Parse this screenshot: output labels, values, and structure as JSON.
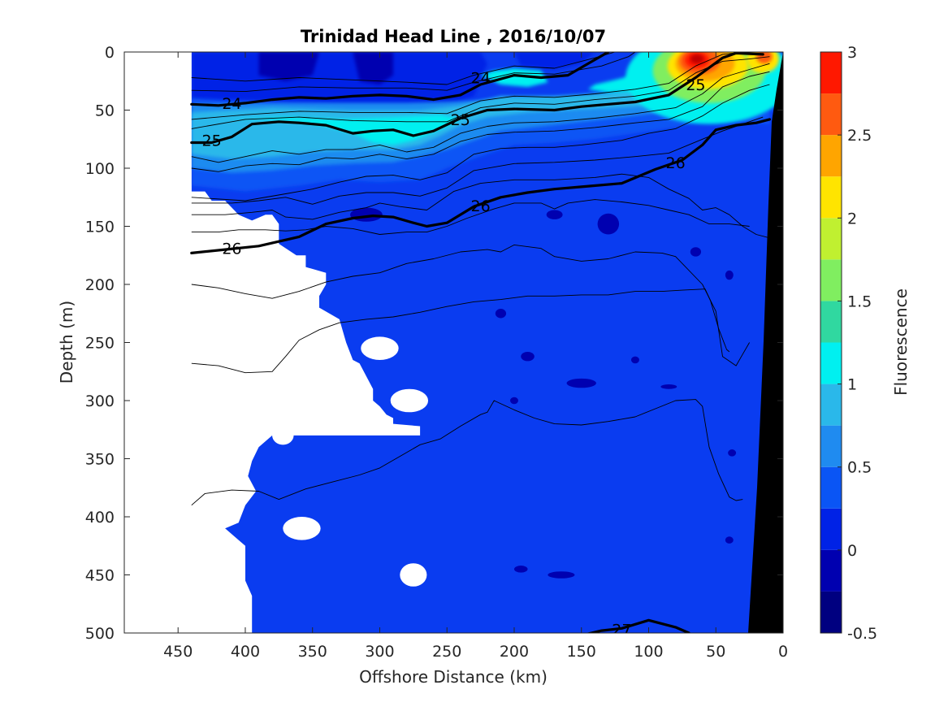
{
  "chart_data": {
    "type": "heatmap",
    "title": "Trinidad Head Line , 2016/10/07",
    "xlabel": "Offshore Distance (km)",
    "ylabel": "Depth (m)",
    "colorbar_label": "Fluorescence",
    "xlim": [
      490,
      0
    ],
    "ylim": [
      0,
      500
    ],
    "x_ticks": [
      450,
      400,
      350,
      300,
      250,
      200,
      150,
      100,
      50,
      0
    ],
    "y_ticks": [
      0,
      50,
      100,
      150,
      200,
      250,
      300,
      350,
      400,
      450,
      500
    ],
    "colorbar_ticks": [
      -0.5,
      0,
      0.5,
      1,
      1.5,
      2,
      2.5,
      3
    ],
    "colorbar_levels": [
      -0.5,
      -0.25,
      0,
      0.25,
      0.5,
      0.75,
      1,
      1.25,
      1.5,
      1.75,
      2,
      2.25,
      2.5,
      2.75,
      3
    ],
    "colormap": [
      "#000080",
      "#0000b0",
      "#0022e6",
      "#0a55f5",
      "#1f8bf0",
      "#2ab8ea",
      "#00f0f0",
      "#30d8a0",
      "#80ee60",
      "#c0f030",
      "#ffe400",
      "#ffa500",
      "#ff5a10",
      "#ff1800",
      "#c00000"
    ],
    "background_fill": "#0a3cf0",
    "isopycnals": [
      {
        "label": "24",
        "points": [
          [
            440,
            45
          ],
          [
            420,
            46
          ],
          [
            400,
            44
          ],
          [
            380,
            41
          ],
          [
            360,
            39
          ],
          [
            340,
            40
          ],
          [
            320,
            38
          ],
          [
            300,
            37
          ],
          [
            280,
            38
          ],
          [
            260,
            41
          ],
          [
            240,
            37
          ],
          [
            225,
            28
          ],
          [
            200,
            20
          ],
          [
            180,
            22
          ],
          [
            160,
            20
          ],
          [
            145,
            10
          ],
          [
            130,
            0
          ]
        ]
      },
      {
        "label": "25",
        "points": [
          [
            440,
            78
          ],
          [
            425,
            78
          ],
          [
            410,
            73
          ],
          [
            395,
            62
          ],
          [
            375,
            60
          ],
          [
            360,
            61
          ],
          [
            340,
            63
          ],
          [
            320,
            70
          ],
          [
            305,
            68
          ],
          [
            290,
            67
          ],
          [
            275,
            72
          ],
          [
            260,
            68
          ],
          [
            240,
            57
          ],
          [
            220,
            50
          ],
          [
            200,
            49
          ],
          [
            170,
            50
          ],
          [
            150,
            47
          ],
          [
            130,
            45
          ],
          [
            110,
            43
          ],
          [
            85,
            37
          ],
          [
            65,
            22
          ],
          [
            45,
            5
          ],
          [
            35,
            1
          ],
          [
            15,
            2
          ]
        ]
      },
      {
        "label": "26",
        "points": [
          [
            440,
            173
          ],
          [
            415,
            170
          ],
          [
            390,
            167
          ],
          [
            360,
            159
          ],
          [
            340,
            148
          ],
          [
            320,
            143
          ],
          [
            305,
            141
          ],
          [
            290,
            142
          ],
          [
            275,
            147
          ],
          [
            265,
            150
          ],
          [
            250,
            147
          ],
          [
            230,
            133
          ],
          [
            210,
            125
          ],
          [
            190,
            121
          ],
          [
            170,
            118
          ],
          [
            150,
            116
          ],
          [
            120,
            113
          ],
          [
            95,
            101
          ],
          [
            75,
            93
          ],
          [
            60,
            80
          ],
          [
            50,
            67
          ],
          [
            35,
            63
          ],
          [
            20,
            61
          ],
          [
            10,
            58
          ]
        ]
      },
      {
        "label": "27",
        "points": [
          [
            150,
            502
          ],
          [
            135,
            498
          ],
          [
            120,
            496
          ],
          [
            100,
            489
          ],
          [
            80,
            495
          ],
          [
            70,
            500
          ]
        ]
      }
    ],
    "thin_contours": [
      [
        [
          440,
          22
        ],
        [
          400,
          25
        ],
        [
          360,
          22
        ],
        [
          320,
          24
        ],
        [
          280,
          26
        ],
        [
          250,
          28
        ],
        [
          230,
          20
        ],
        [
          200,
          12
        ],
        [
          170,
          14
        ],
        [
          140,
          5
        ],
        [
          125,
          0
        ]
      ],
      [
        [
          440,
          33
        ],
        [
          400,
          34
        ],
        [
          360,
          30
        ],
        [
          320,
          31
        ],
        [
          280,
          31
        ],
        [
          250,
          33
        ],
        [
          230,
          26
        ],
        [
          200,
          18
        ],
        [
          170,
          19
        ],
        [
          135,
          12
        ],
        [
          115,
          4
        ],
        [
          110,
          0
        ]
      ],
      [
        [
          440,
          58
        ],
        [
          400,
          54
        ],
        [
          360,
          51
        ],
        [
          320,
          52
        ],
        [
          280,
          52
        ],
        [
          250,
          53
        ],
        [
          225,
          42
        ],
        [
          200,
          38
        ],
        [
          170,
          39
        ],
        [
          140,
          36
        ],
        [
          110,
          32
        ],
        [
          85,
          27
        ],
        [
          65,
          12
        ],
        [
          45,
          2
        ],
        [
          30,
          0
        ]
      ],
      [
        [
          440,
          66
        ],
        [
          400,
          58
        ],
        [
          360,
          56
        ],
        [
          320,
          59
        ],
        [
          280,
          60
        ],
        [
          250,
          60
        ],
        [
          225,
          48
        ],
        [
          200,
          44
        ],
        [
          170,
          45
        ],
        [
          140,
          41
        ],
        [
          110,
          38
        ],
        [
          85,
          33
        ],
        [
          65,
          18
        ],
        [
          45,
          8
        ],
        [
          25,
          6
        ],
        [
          10,
          4
        ]
      ],
      [
        [
          440,
          90
        ],
        [
          420,
          95
        ],
        [
          400,
          90
        ],
        [
          380,
          85
        ],
        [
          360,
          88
        ],
        [
          340,
          84
        ],
        [
          320,
          84
        ],
        [
          300,
          80
        ],
        [
          280,
          86
        ],
        [
          260,
          82
        ],
        [
          240,
          70
        ],
        [
          220,
          64
        ],
        [
          200,
          61
        ],
        [
          170,
          60
        ],
        [
          140,
          57
        ],
        [
          110,
          53
        ],
        [
          80,
          48
        ],
        [
          60,
          36
        ],
        [
          45,
          22
        ],
        [
          25,
          15
        ],
        [
          10,
          10
        ]
      ],
      [
        [
          440,
          100
        ],
        [
          420,
          103
        ],
        [
          400,
          98
        ],
        [
          380,
          96
        ],
        [
          360,
          97
        ],
        [
          340,
          91
        ],
        [
          320,
          92
        ],
        [
          300,
          88
        ],
        [
          280,
          92
        ],
        [
          260,
          88
        ],
        [
          240,
          77
        ],
        [
          220,
          71
        ],
        [
          200,
          69
        ],
        [
          170,
          68
        ],
        [
          140,
          65
        ],
        [
          110,
          61
        ],
        [
          85,
          58
        ],
        [
          60,
          47
        ],
        [
          45,
          30
        ],
        [
          25,
          21
        ],
        [
          10,
          17
        ]
      ],
      [
        [
          440,
          125
        ],
        [
          400,
          128
        ],
        [
          370,
          122
        ],
        [
          350,
          118
        ],
        [
          330,
          112
        ],
        [
          310,
          107
        ],
        [
          290,
          106
        ],
        [
          270,
          110
        ],
        [
          250,
          104
        ],
        [
          230,
          88
        ],
        [
          210,
          83
        ],
        [
          190,
          82
        ],
        [
          170,
          82
        ],
        [
          150,
          80
        ],
        [
          120,
          76
        ],
        [
          100,
          70
        ],
        [
          80,
          66
        ],
        [
          60,
          55
        ],
        [
          45,
          44
        ],
        [
          25,
          33
        ],
        [
          10,
          28
        ]
      ],
      [
        [
          440,
          130
        ],
        [
          410,
          130
        ],
        [
          390,
          128
        ],
        [
          370,
          125
        ],
        [
          350,
          131
        ],
        [
          330,
          124
        ],
        [
          310,
          121
        ],
        [
          290,
          121
        ],
        [
          270,
          124
        ],
        [
          250,
          117
        ],
        [
          230,
          102
        ],
        [
          200,
          96
        ],
        [
          170,
          95
        ],
        [
          140,
          93
        ],
        [
          110,
          90
        ],
        [
          85,
          87
        ],
        [
          60,
          75
        ],
        [
          45,
          68
        ],
        [
          30,
          62
        ],
        [
          15,
          56
        ]
      ],
      [
        [
          440,
          140
        ],
        [
          415,
          140
        ],
        [
          395,
          138
        ],
        [
          380,
          136
        ],
        [
          370,
          142
        ],
        [
          350,
          144
        ],
        [
          330,
          138
        ],
        [
          310,
          134
        ],
        [
          300,
          130
        ],
        [
          285,
          133
        ],
        [
          265,
          136
        ],
        [
          245,
          120
        ],
        [
          225,
          113
        ],
        [
          200,
          110
        ],
        [
          170,
          110
        ],
        [
          140,
          108
        ],
        [
          120,
          105
        ],
        [
          100,
          108
        ],
        [
          85,
          118
        ],
        [
          70,
          126
        ],
        [
          60,
          136
        ],
        [
          50,
          134
        ],
        [
          40,
          140
        ],
        [
          30,
          150
        ],
        [
          20,
          157
        ],
        [
          10,
          160
        ]
      ],
      [
        [
          440,
          155
        ],
        [
          420,
          155
        ],
        [
          405,
          153
        ],
        [
          385,
          153
        ],
        [
          370,
          154
        ],
        [
          355,
          153
        ],
        [
          340,
          150
        ],
        [
          320,
          152
        ],
        [
          300,
          157
        ],
        [
          280,
          155
        ],
        [
          265,
          155
        ],
        [
          250,
          150
        ],
        [
          235,
          143
        ],
        [
          215,
          135
        ],
        [
          200,
          130
        ],
        [
          180,
          130
        ],
        [
          170,
          135
        ],
        [
          160,
          130
        ],
        [
          140,
          127
        ],
        [
          120,
          129
        ],
        [
          100,
          132
        ],
        [
          85,
          136
        ],
        [
          70,
          140
        ],
        [
          55,
          148
        ],
        [
          40,
          148
        ],
        [
          25,
          150
        ]
      ],
      [
        [
          440,
          200
        ],
        [
          420,
          203
        ],
        [
          400,
          208
        ],
        [
          380,
          212
        ],
        [
          360,
          206
        ],
        [
          340,
          198
        ],
        [
          320,
          193
        ],
        [
          300,
          190
        ],
        [
          280,
          182
        ],
        [
          260,
          178
        ],
        [
          240,
          172
        ],
        [
          220,
          170
        ],
        [
          210,
          172
        ],
        [
          200,
          166
        ],
        [
          180,
          169
        ],
        [
          170,
          176
        ],
        [
          150,
          180
        ],
        [
          130,
          178
        ],
        [
          110,
          172
        ],
        [
          90,
          173
        ],
        [
          80,
          176
        ],
        [
          60,
          200
        ],
        [
          50,
          223
        ],
        [
          45,
          262
        ],
        [
          40,
          266
        ],
        [
          35,
          270
        ],
        [
          30,
          260
        ],
        [
          25,
          250
        ]
      ],
      [
        [
          440,
          268
        ],
        [
          420,
          270
        ],
        [
          400,
          276
        ],
        [
          380,
          275
        ],
        [
          370,
          262
        ],
        [
          360,
          248
        ],
        [
          345,
          239
        ],
        [
          330,
          233
        ],
        [
          310,
          230
        ],
        [
          290,
          228
        ],
        [
          270,
          224
        ],
        [
          250,
          219
        ],
        [
          230,
          215
        ],
        [
          210,
          213
        ],
        [
          190,
          210
        ],
        [
          170,
          210
        ],
        [
          150,
          209
        ],
        [
          130,
          209
        ],
        [
          110,
          206
        ],
        [
          90,
          206
        ],
        [
          75,
          205
        ],
        [
          58,
          204
        ],
        [
          54,
          214
        ],
        [
          48,
          238
        ],
        [
          42,
          256
        ],
        [
          40,
          258
        ]
      ],
      [
        [
          440,
          390
        ],
        [
          430,
          380
        ],
        [
          410,
          377
        ],
        [
          390,
          378
        ],
        [
          375,
          385
        ],
        [
          355,
          376
        ],
        [
          335,
          370
        ],
        [
          315,
          364
        ],
        [
          300,
          358
        ],
        [
          285,
          348
        ],
        [
          270,
          338
        ],
        [
          255,
          333
        ],
        [
          240,
          322
        ],
        [
          225,
          312
        ],
        [
          220,
          310
        ],
        [
          215,
          300
        ],
        [
          200,
          308
        ],
        [
          185,
          315
        ],
        [
          170,
          320
        ],
        [
          150,
          321
        ],
        [
          130,
          318
        ],
        [
          110,
          314
        ],
        [
          95,
          307
        ],
        [
          80,
          300
        ],
        [
          65,
          299
        ],
        [
          60,
          305
        ],
        [
          55,
          340
        ],
        [
          48,
          363
        ],
        [
          40,
          383
        ],
        [
          35,
          386
        ],
        [
          30,
          385
        ]
      ]
    ]
  }
}
